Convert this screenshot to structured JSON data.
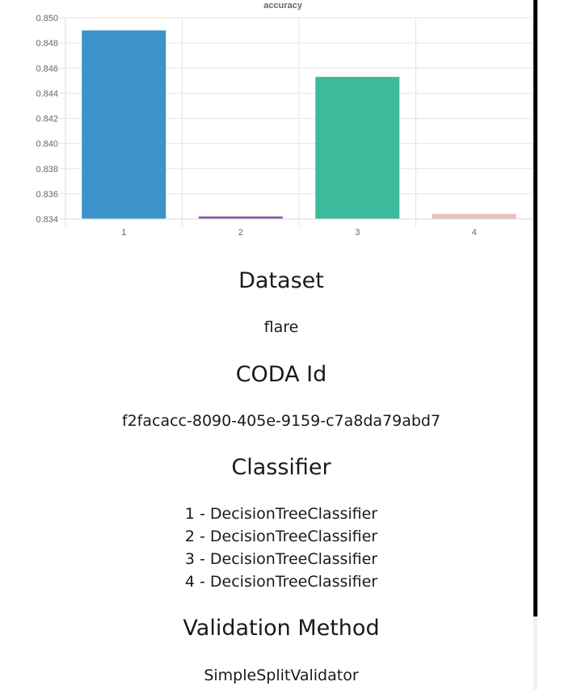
{
  "chart_data": {
    "type": "bar",
    "title": "accuracy",
    "categories": [
      "1",
      "2",
      "3",
      "4"
    ],
    "values": [
      0.849,
      0.8342,
      0.8453,
      0.8344
    ],
    "colors": [
      "#3d93cc",
      "#8d5ca6",
      "#3db99b",
      "#e8c3b9"
    ],
    "ylim": [
      0.834,
      0.85
    ],
    "yticks": [
      "0.850",
      "0.848",
      "0.846",
      "0.844",
      "0.842",
      "0.840",
      "0.838",
      "0.836",
      "0.834"
    ],
    "ytick_values": [
      0.85,
      0.848,
      0.846,
      0.844,
      0.842,
      0.84,
      0.838,
      0.836,
      0.834
    ],
    "grid": true,
    "legend": "none"
  },
  "sections": {
    "dataset": {
      "heading": "Dataset",
      "value": "flare"
    },
    "coda": {
      "heading": "CODA Id",
      "value": "f2facacc-8090-405e-9159-c7a8da79abd7"
    },
    "classifier": {
      "heading": "Classifier",
      "items": [
        "1 - DecisionTreeClassifier",
        "2 - DecisionTreeClassifier",
        "3 - DecisionTreeClassifier",
        "4 - DecisionTreeClassifier"
      ]
    },
    "validation": {
      "heading": "Validation Method",
      "value": "SimpleSplitValidator"
    }
  }
}
